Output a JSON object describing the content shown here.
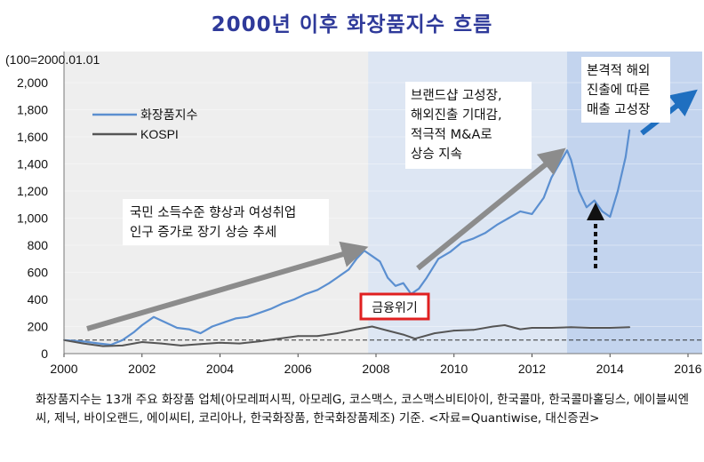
{
  "title": "2000년 이후 화장품지수 흐름",
  "footnote": "화장품지수는 13개 주요 화장품 업체(아모레퍼시픽, 아모레G, 코스맥스, 코스맥스비티아이, 한국콜마, 한국콜마홀딩스, 에이블씨엔씨, 제닉, 바이오랜드, 에이씨티, 코리아나, 한국화장품, 한국화장품제조) 기준. <자료=Quantiwise, 대신증권>",
  "annotations": {
    "phase1": [
      "국민 소득수준 향상과 여성취업",
      "인구 증가로 장기 상승 추세"
    ],
    "phase2": [
      "브랜드샵 고성장,",
      "해외진출 기대감,",
      "적극적 M&A로",
      "상승 지속"
    ],
    "phase3": [
      "본격적 해외",
      "진출에 따른",
      "매출 고성장"
    ],
    "crisis": "금융위기"
  },
  "colors": {
    "cosmetics": "#5b8fd0",
    "kospi": "#555555",
    "arrow_gray": "#8c8c8c",
    "arrow_blue": "#1f6fc0",
    "crisis_box": "#e02020",
    "title": "#2f3a9a"
  },
  "chart_data": {
    "type": "line",
    "title": "2000년 이후 화장품지수 흐름",
    "ylabel": "(100=2000.01.01",
    "xlabel": "",
    "xlim": [
      2000,
      2016
    ],
    "ylim": [
      0,
      2000
    ],
    "x_ticks": [
      "2000",
      "2002",
      "2004",
      "2006",
      "2008",
      "2010",
      "2012",
      "2014",
      "2016"
    ],
    "y_ticks": [
      "0",
      "200",
      "400",
      "600",
      "800",
      "1,000",
      "1,200",
      "1,400",
      "1,600",
      "1,800",
      "2,000"
    ],
    "legend": {
      "position": "upper-left"
    },
    "reference_line": 100,
    "shaded_periods": [
      {
        "from": 2000,
        "to": 2007.8,
        "shade": "light"
      },
      {
        "from": 2007.8,
        "to": 2012.9,
        "shade": "medium"
      },
      {
        "from": 2012.9,
        "to": 2016.5,
        "shade": "dark"
      }
    ],
    "series": [
      {
        "name": "화장품지수",
        "x": [
          2000.0,
          2000.5,
          2000.9,
          2001.2,
          2001.5,
          2001.8,
          2002.0,
          2002.3,
          2002.6,
          2002.9,
          2003.2,
          2003.5,
          2003.8,
          2004.1,
          2004.4,
          2004.7,
          2005.0,
          2005.3,
          2005.6,
          2005.9,
          2006.2,
          2006.5,
          2006.8,
          2007.0,
          2007.3,
          2007.5,
          2007.7,
          2007.9,
          2008.1,
          2008.3,
          2008.5,
          2008.7,
          2008.9,
          2009.1,
          2009.3,
          2009.6,
          2009.9,
          2010.2,
          2010.5,
          2010.8,
          2011.1,
          2011.4,
          2011.7,
          2012.0,
          2012.3,
          2012.5,
          2012.7,
          2012.9,
          2013.0,
          2013.2,
          2013.4,
          2013.6,
          2013.8,
          2014.0,
          2014.2,
          2014.4,
          2014.5
        ],
        "y": [
          100,
          90,
          75,
          65,
          100,
          160,
          210,
          270,
          230,
          190,
          180,
          150,
          200,
          230,
          260,
          270,
          300,
          330,
          370,
          400,
          440,
          470,
          520,
          560,
          620,
          700,
          760,
          720,
          680,
          560,
          500,
          520,
          440,
          480,
          560,
          700,
          750,
          820,
          850,
          890,
          950,
          1000,
          1050,
          1030,
          1150,
          1300,
          1400,
          1500,
          1430,
          1200,
          1080,
          1130,
          1050,
          1010,
          1200,
          1450,
          1650
        ]
      },
      {
        "name": "KOSPI",
        "x": [
          2000.0,
          2000.5,
          2001.0,
          2001.5,
          2002.0,
          2002.5,
          2003.0,
          2003.5,
          2004.0,
          2004.5,
          2005.0,
          2005.5,
          2006.0,
          2006.5,
          2007.0,
          2007.5,
          2007.9,
          2008.3,
          2008.7,
          2009.0,
          2009.5,
          2010.0,
          2010.5,
          2011.0,
          2011.3,
          2011.7,
          2012.0,
          2012.5,
          2013.0,
          2013.5,
          2014.0,
          2014.5
        ],
        "y": [
          100,
          75,
          55,
          60,
          85,
          75,
          60,
          70,
          80,
          75,
          90,
          110,
          130,
          130,
          150,
          180,
          200,
          170,
          140,
          110,
          150,
          170,
          175,
          200,
          210,
          180,
          190,
          190,
          195,
          190,
          190,
          195
        ]
      }
    ]
  }
}
